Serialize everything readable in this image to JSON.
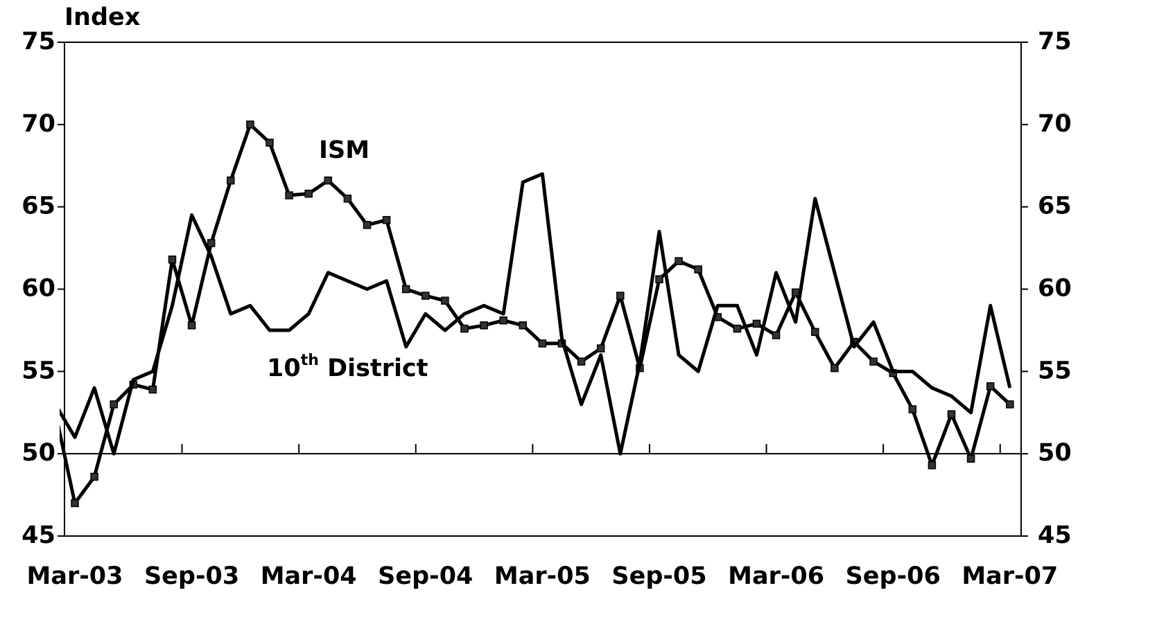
{
  "chart_data": {
    "type": "line",
    "ylabel": "Index",
    "categories": [
      null,
      "Mar-03",
      null,
      null,
      null,
      null,
      null,
      "Sep-03",
      null,
      null,
      null,
      null,
      null,
      "Mar-04",
      null,
      null,
      null,
      null,
      null,
      "Sep-04",
      null,
      null,
      null,
      null,
      null,
      "Mar-05",
      null,
      null,
      null,
      null,
      null,
      "Sep-05",
      null,
      null,
      null,
      null,
      null,
      "Mar-06",
      null,
      null,
      null,
      null,
      null,
      "Sep-06",
      null,
      null,
      null,
      null,
      null,
      "Mar-07"
    ],
    "series": [
      {
        "name": "ISM",
        "color": "#000000",
        "marker": "square",
        "values": [
          52.5,
          47,
          48.6,
          53,
          54.2,
          53.9,
          61.8,
          57.8,
          62.8,
          66.6,
          70,
          68.9,
          65.7,
          65.8,
          66.6,
          65.5,
          63.9,
          64.2,
          60,
          59.6,
          59.3,
          57.6,
          57.8,
          58.1,
          57.8,
          56.7,
          56.7,
          55.6,
          56.4,
          59.6,
          55.2,
          60.6,
          61.7,
          61.2,
          58.3,
          57.6,
          57.9,
          57.2,
          59.8,
          57.4,
          55.2,
          56.8,
          55.6,
          54.9,
          52.7,
          49.3,
          52.4,
          49.7,
          54.1,
          53
        ]
      },
      {
        "name": "10th District",
        "color": "#000000",
        "marker": "none",
        "values": [
          53,
          51,
          54,
          50,
          54.5,
          55,
          59,
          64.5,
          62,
          58.5,
          59,
          57.5,
          57.5,
          58.5,
          61,
          60.5,
          60,
          60.5,
          56.5,
          58.5,
          57.5,
          58.5,
          59,
          58.5,
          66.5,
          67,
          57,
          53,
          56,
          50,
          55.5,
          63.5,
          56,
          55,
          59,
          59,
          56,
          61,
          58,
          65.5,
          61,
          56.5,
          58,
          55,
          55,
          54,
          53.5,
          52.5,
          59,
          54
        ]
      }
    ],
    "ylim": [
      45,
      75
    ],
    "yticks": [
      45,
      50,
      55,
      60,
      65,
      70,
      75
    ],
    "y2lim": [
      45,
      75
    ],
    "y2ticks": [
      45,
      50,
      55,
      60,
      65,
      70,
      75
    ]
  }
}
